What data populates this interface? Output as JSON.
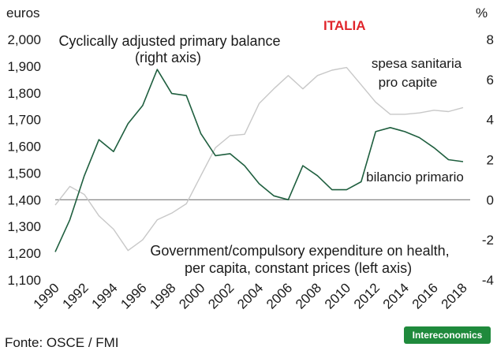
{
  "chart_data": {
    "type": "line",
    "title": "ITALIA",
    "left_axis_unit": "euros",
    "right_axis_unit": "%",
    "left_ylim": [
      1100,
      2000
    ],
    "left_yticks": [
      "1,100",
      "1,200",
      "1,300",
      "1,400",
      "1,500",
      "1,600",
      "1,700",
      "1,800",
      "1,900",
      "2,000"
    ],
    "right_ylim": [
      -4,
      8
    ],
    "right_yticks": [
      "-4",
      "-2",
      "0",
      "2",
      "4",
      "6",
      "8"
    ],
    "x_tick_labels": [
      "1990",
      "1992",
      "1994",
      "1996",
      "1998",
      "2000",
      "2002",
      "2004",
      "2006",
      "2008",
      "2010",
      "2012",
      "2014",
      "2016",
      "2018"
    ],
    "grid": false,
    "series": [
      {
        "name": "spesa sanitaria pro capite",
        "axis": "left",
        "color": "#c8c8c8",
        "x": [
          1990,
          1991,
          1992,
          1993,
          1994,
          1995,
          1996,
          1997,
          1998,
          1999,
          2000,
          2001,
          2002,
          2003,
          2004,
          2005,
          2006,
          2007,
          2008,
          2009,
          2010,
          2011,
          2012,
          2013,
          2014,
          2015,
          2016,
          2017,
          2018
        ],
        "values": [
          1380,
          1450,
          1420,
          1340,
          1290,
          1210,
          1250,
          1325,
          1350,
          1385,
          1490,
          1595,
          1640,
          1645,
          1760,
          1815,
          1865,
          1815,
          1865,
          1885,
          1895,
          1830,
          1765,
          1720,
          1720,
          1725,
          1735,
          1730,
          1745
        ]
      },
      {
        "name": "bilancio primario",
        "axis": "right",
        "color": "#1f5f3f",
        "x": [
          1990,
          1991,
          1992,
          1993,
          1994,
          1995,
          1996,
          1997,
          1998,
          1999,
          2000,
          2001,
          2002,
          2003,
          2004,
          2005,
          2006,
          2007,
          2008,
          2009,
          2010,
          2011,
          2012,
          2013,
          2014,
          2015,
          2016,
          2017,
          2018
        ],
        "values": [
          -2.6,
          -1.0,
          1.2,
          3.0,
          2.4,
          3.8,
          4.7,
          6.5,
          5.3,
          5.2,
          3.3,
          2.2,
          2.3,
          1.7,
          0.8,
          0.2,
          0.0,
          1.7,
          1.2,
          0.5,
          0.5,
          0.9,
          3.4,
          3.6,
          3.4,
          3.1,
          2.6,
          2.0,
          1.9
        ]
      }
    ],
    "annotations": {
      "primary_balance_line1": "Cyclically adjusted primary balance",
      "primary_balance_line2": "(right axis)",
      "spesa_line1": "spesa sanitaria",
      "spesa_line2": "pro capite",
      "bilancio": "bilancio primario",
      "govexp_line1": "Government/compulsory expenditure on health,",
      "govexp_line2": "per capita, constant prices (left axis)"
    }
  },
  "source": "Fonte: OSCE / FMI",
  "brand": "Intereconomics"
}
